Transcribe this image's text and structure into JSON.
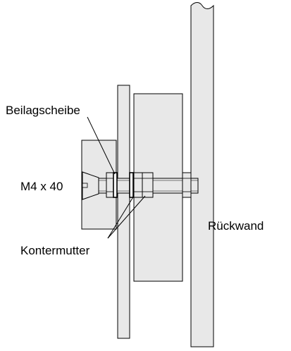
{
  "labels": {
    "washer": "Beilagscheibe",
    "screw": "M4 x 40",
    "locknut": "Kontermutter",
    "back_wall": "Rückwand"
  },
  "colors": {
    "panel_fill": "#e8e8e8",
    "stroke": "#000000",
    "background": "#ffffff"
  }
}
